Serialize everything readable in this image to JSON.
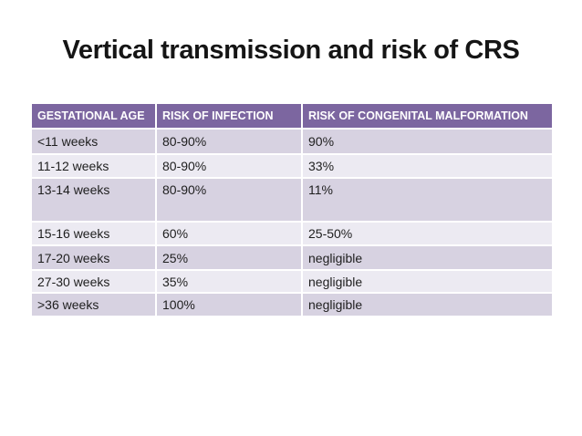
{
  "slide": {
    "title": "Vertical transmission and risk of CRS"
  },
  "table": {
    "headers": [
      "GESTATIONAL AGE",
      "RISK OF INFECTION",
      "RISK OF CONGENITAL MALFORMATION"
    ],
    "rows": [
      [
        "<11 weeks",
        "80-90%",
        "90%"
      ],
      [
        "11-12 weeks",
        "80-90%",
        "33%"
      ],
      [
        "13-14 weeks",
        "80-90%",
        "11%"
      ],
      [
        "15-16 weeks",
        "60%",
        "25-50%"
      ],
      [
        "17-20 weeks",
        "25%",
        "negligible"
      ],
      [
        "27-30 weeks",
        "35%",
        "negligible"
      ],
      [
        ">36 weeks",
        "100%",
        "negligible"
      ]
    ]
  },
  "colors": {
    "header-bg": "#7C66A0",
    "header-text": "#FFFFFF",
    "row-dark": "#D7D2E1",
    "row-light": "#ECEAF2",
    "title-text": "#151515",
    "cell-text": "#1E1E1E"
  }
}
